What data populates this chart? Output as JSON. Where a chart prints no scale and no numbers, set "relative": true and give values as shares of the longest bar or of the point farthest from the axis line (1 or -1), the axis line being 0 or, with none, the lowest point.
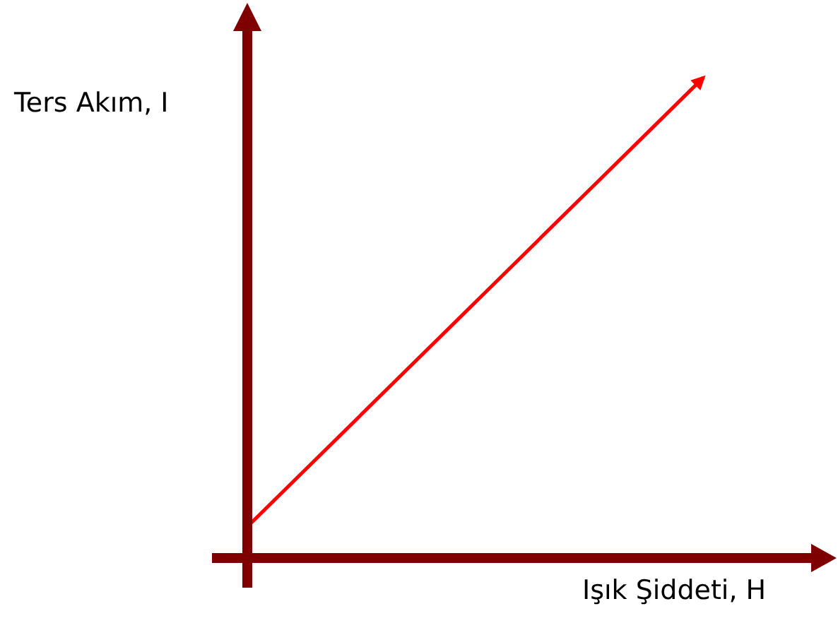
{
  "chart_data": {
    "type": "line",
    "relative": true,
    "xlabel": "Işık Şiddeti, H",
    "ylabel": "Ters Akım, I",
    "categories": [
      null,
      null
    ],
    "series": [
      {
        "color": "#ff0000",
        "values": [
          0.065,
          1
        ]
      }
    ],
    "marker": "none",
    "line_style": "solid"
  }
}
